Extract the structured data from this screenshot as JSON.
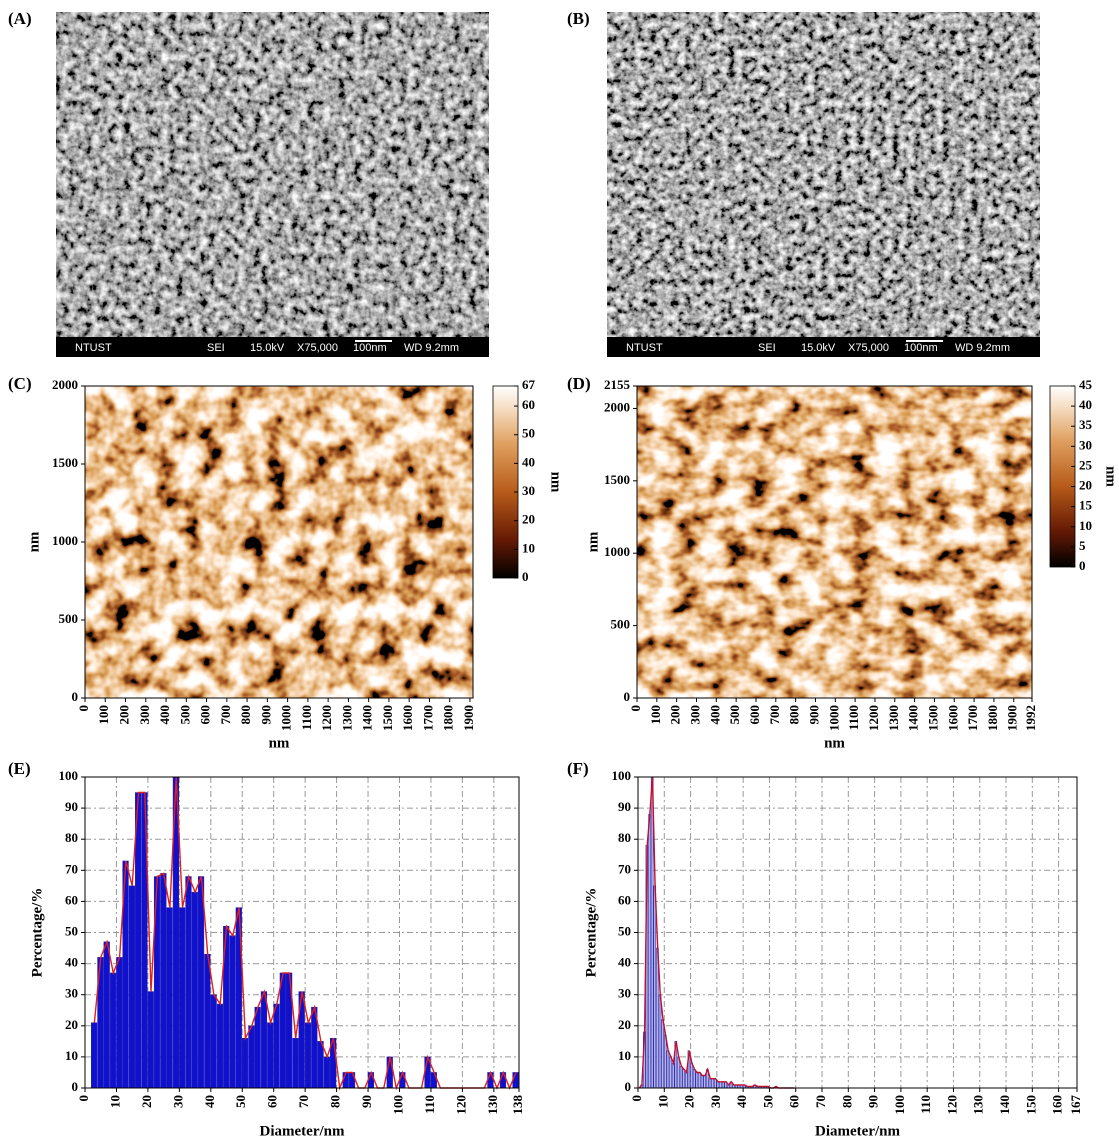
{
  "panels": [
    {
      "label": "(A)",
      "footer": [
        "NTUST",
        "SEI",
        "15.0kV",
        "X75,000",
        "100nm",
        "WD 9.2mm"
      ]
    },
    {
      "label": "(B)",
      "footer": [
        "NTUST",
        "SEI",
        "15.0kV",
        "X75,000",
        "100nm",
        "WD 9.2mm"
      ]
    }
  ],
  "chart_data": [
    {
      "type": "heatmap",
      "label": "(C)",
      "xlabel": "nm",
      "ylabel": "nm",
      "xlim": [
        0,
        1915
      ],
      "xticks": [
        0,
        100,
        200,
        300,
        400,
        500,
        600,
        700,
        800,
        900,
        1000,
        1100,
        1200,
        1300,
        1400,
        1500,
        1600,
        1700,
        1800,
        1900
      ],
      "ylim": [
        0,
        2000
      ],
      "yticks": [
        0,
        500,
        1000,
        1500,
        2000
      ],
      "colorbar": {
        "label": "nm",
        "lim": [
          0,
          67
        ],
        "ticks": [
          0,
          10,
          20,
          30,
          40,
          50,
          60,
          67
        ]
      }
    },
    {
      "type": "heatmap",
      "label": "(D)",
      "xlabel": "nm",
      "ylabel": "nm",
      "xlim": [
        0,
        1992
      ],
      "xticks": [
        0,
        100,
        200,
        300,
        400,
        500,
        600,
        700,
        800,
        900,
        1000,
        1100,
        1200,
        1300,
        1400,
        1500,
        1600,
        1700,
        1800,
        1900,
        1992
      ],
      "ylim": [
        0,
        2155
      ],
      "yticks": [
        0,
        500,
        1000,
        1500,
        2000,
        2155
      ],
      "colorbar": {
        "label": "nm",
        "lim": [
          0,
          45
        ],
        "ticks": [
          0,
          5,
          10,
          15,
          20,
          25,
          30,
          35,
          40,
          45
        ]
      }
    },
    {
      "type": "histogram",
      "label": "(E)",
      "xlabel": "Diameter/nm",
      "ylabel": "Percentage/%",
      "color": "#1010d0",
      "line_color": "#e02020",
      "grid": true,
      "bins": [
        2,
        4,
        6,
        8,
        10,
        12,
        14,
        16,
        18,
        20,
        22,
        24,
        26,
        28,
        30,
        32,
        34,
        36,
        38,
        40,
        42,
        44,
        46,
        48,
        50,
        52,
        54,
        56,
        58,
        60,
        62,
        64,
        66,
        68,
        70,
        72,
        74,
        76,
        78,
        80,
        82,
        84,
        86,
        88,
        90,
        92,
        94,
        96,
        98,
        100,
        102,
        104,
        106,
        108,
        110,
        112,
        114,
        116,
        118,
        120,
        122,
        124,
        126,
        128,
        130,
        132,
        134,
        136,
        138
      ],
      "values": [
        21,
        42,
        47,
        37,
        42,
        73,
        65,
        95,
        95,
        31,
        68,
        69,
        58,
        100,
        58,
        68,
        63,
        68,
        43,
        30,
        27,
        52,
        49,
        58,
        16,
        20,
        26,
        31,
        21,
        27,
        37,
        37,
        16,
        31,
        21,
        26,
        15,
        10,
        16,
        0,
        5,
        5,
        0,
        0,
        5,
        0,
        0,
        10,
        0,
        5,
        0,
        0,
        0,
        10,
        5,
        0,
        0,
        0,
        0,
        0,
        0,
        0,
        0,
        5,
        0,
        5,
        0,
        5
      ],
      "xlim": [
        0,
        138
      ],
      "xticks": [
        0,
        10,
        20,
        30,
        40,
        50,
        60,
        70,
        80,
        90,
        100,
        110,
        120,
        130,
        138
      ],
      "ylim": [
        0,
        100
      ],
      "yticks": [
        0,
        10,
        20,
        30,
        40,
        50,
        60,
        70,
        80,
        90,
        100
      ]
    },
    {
      "type": "histogram",
      "label": "(F)",
      "xlabel": "Diameter/nm",
      "ylabel": "Percentage/%",
      "color": "#b4b4ee",
      "line_color": "#c01030",
      "grid": true,
      "bins": [
        0,
        1,
        2,
        3,
        4,
        5,
        6,
        7,
        8,
        9,
        10,
        11,
        12,
        13,
        14,
        15,
        16,
        17,
        18,
        19,
        20,
        21,
        22,
        23,
        24,
        25,
        26,
        27,
        28,
        29,
        30,
        31,
        32,
        33,
        34,
        35,
        36,
        37,
        38,
        39,
        40,
        41,
        42,
        43,
        44,
        45,
        46,
        47,
        48,
        49,
        50,
        51,
        52,
        53,
        54,
        55,
        56,
        57,
        58,
        59,
        60
      ],
      "values": [
        0,
        1,
        18,
        78,
        88,
        100,
        65,
        45,
        30,
        22,
        17,
        12,
        10,
        8,
        15,
        10,
        7,
        6,
        5,
        12,
        8,
        6,
        5,
        5,
        4,
        4,
        6,
        3,
        3,
        3,
        2,
        2,
        2,
        2,
        1,
        2,
        1,
        1,
        1,
        1,
        1,
        0.5,
        0.5,
        0.5,
        1,
        0.5,
        0.5,
        0.5,
        0.5,
        0.5,
        0,
        0,
        0.5,
        0,
        0,
        0,
        0,
        0,
        0,
        0
      ],
      "xlim": [
        0,
        167
      ],
      "xticks": [
        0,
        10,
        20,
        30,
        40,
        50,
        60,
        70,
        80,
        90,
        100,
        110,
        120,
        130,
        140,
        150,
        160,
        167
      ],
      "ylim": [
        0,
        100
      ],
      "yticks": [
        0,
        10,
        20,
        30,
        40,
        50,
        60,
        70,
        80,
        90,
        100
      ]
    }
  ]
}
